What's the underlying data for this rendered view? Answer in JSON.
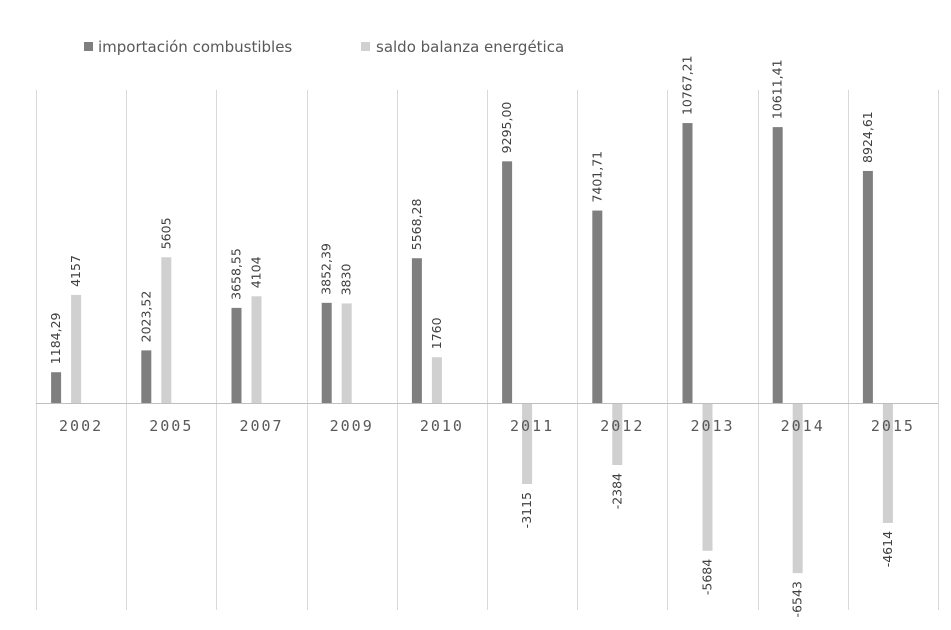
{
  "chart_data": {
    "type": "bar",
    "title": "",
    "xlabel": "",
    "ylabel": "",
    "categories": [
      "2002",
      "2005",
      "2007",
      "2009",
      "2010",
      "2011",
      "2012",
      "2013",
      "2014",
      "2015"
    ],
    "series": [
      {
        "name": "importación combustibles",
        "values": [
          1184.29,
          2023.52,
          3658.55,
          3852.39,
          5568.28,
          9295.0,
          7401.71,
          10767.21,
          10611.41,
          8924.61
        ],
        "labels": [
          "1184,29",
          "2023,52",
          "3658,55",
          "3852,39",
          "5568,28",
          "9295,00",
          "7401,71",
          "10767,21",
          "10611,41",
          "8924,61"
        ],
        "color": "#7f7f7f"
      },
      {
        "name": "saldo balanza energética",
        "values": [
          4157,
          5605,
          4104,
          3830,
          1760,
          -3115,
          -2384,
          -5684,
          -6543,
          -4614
        ],
        "labels": [
          "4157",
          "5605",
          "4104",
          "3830",
          "1760",
          "-3115",
          "-2384",
          "-5684",
          "-6543",
          "-4614"
        ],
        "color": "#d0d0d0"
      }
    ],
    "legend_position": "top-left",
    "grid": "vertical category separators",
    "ylim": [
      -8000,
      12000
    ]
  }
}
